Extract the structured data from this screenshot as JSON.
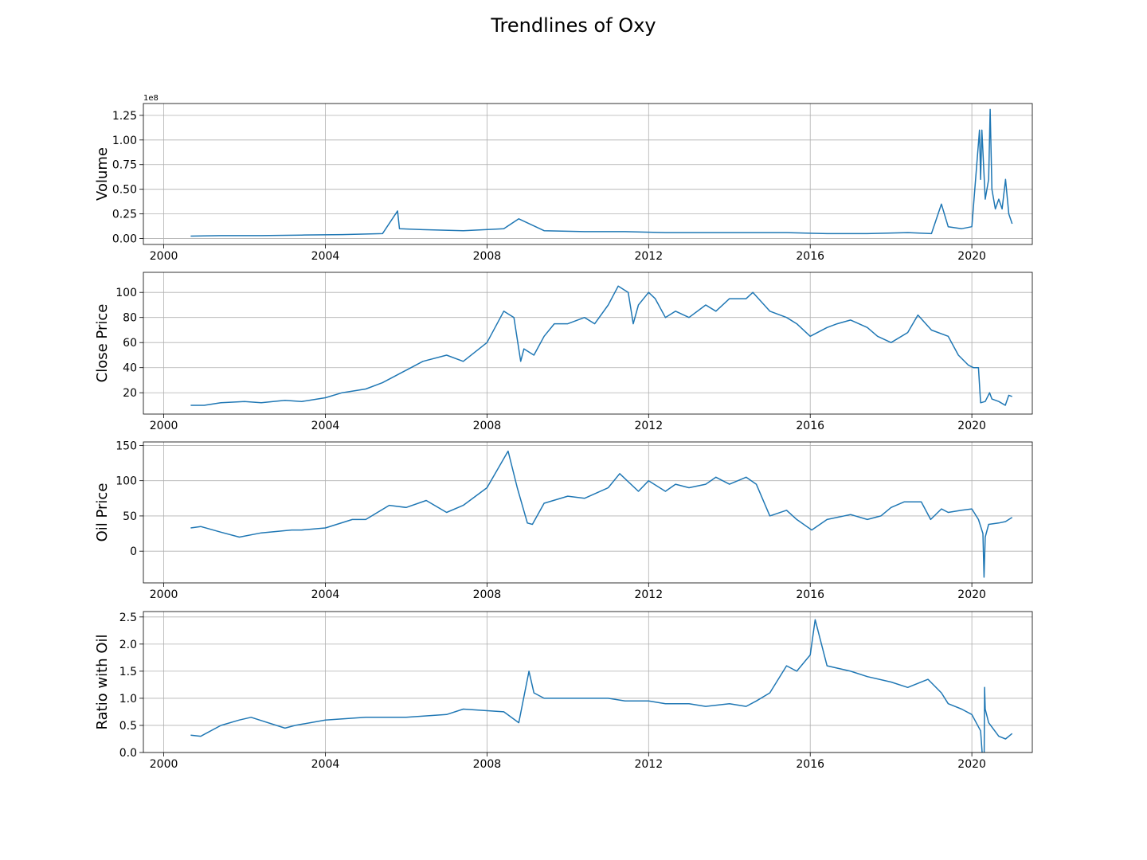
{
  "chart_data": {
    "type": "line",
    "title": "Trendlines of Oxy",
    "x_axis": {
      "label": "",
      "type": "date",
      "range": [
        "1999-07-01",
        "2021-07-01"
      ],
      "ticks": [
        "2000",
        "2004",
        "2008",
        "2012",
        "2016",
        "2020"
      ]
    },
    "line_color": "#1f77b4",
    "grid": true,
    "panels": [
      {
        "name": "volume",
        "ylabel": "Volume",
        "y_offset_label": "1e8",
        "ylim": [
          -0.06,
          1.37
        ],
        "y_ticks": [
          "0.00",
          "0.25",
          "0.50",
          "0.75",
          "1.00",
          "1.25"
        ],
        "y_tick_values": [
          0,
          0.25,
          0.5,
          0.75,
          1.0,
          1.25
        ],
        "series": [
          {
            "name": "",
            "x": [
              "2000-09-01",
              "2001-06-01",
              "2002-06-01",
              "2003-06-01",
              "2004-06-01",
              "2005-06-01",
              "2005-10-15",
              "2005-11-01",
              "2006-06-01",
              "2007-06-01",
              "2008-06-01",
              "2008-10-15",
              "2009-06-01",
              "2010-06-01",
              "2011-06-01",
              "2012-06-01",
              "2013-06-01",
              "2014-06-01",
              "2015-06-01",
              "2016-06-01",
              "2017-06-01",
              "2018-06-01",
              "2019-01-01",
              "2019-04-01",
              "2019-06-01",
              "2019-10-01",
              "2020-01-01",
              "2020-03-10",
              "2020-03-20",
              "2020-04-01",
              "2020-05-01",
              "2020-06-01",
              "2020-06-15",
              "2020-07-01",
              "2020-08-01",
              "2020-09-01",
              "2020-10-01",
              "2020-11-01",
              "2020-12-01",
              "2020-12-31"
            ],
            "values": [
              0.025,
              0.03,
              0.03,
              0.035,
              0.04,
              0.05,
              0.28,
              0.1,
              0.09,
              0.08,
              0.1,
              0.2,
              0.08,
              0.07,
              0.07,
              0.06,
              0.06,
              0.06,
              0.06,
              0.05,
              0.05,
              0.06,
              0.05,
              0.35,
              0.12,
              0.1,
              0.12,
              1.1,
              0.6,
              1.1,
              0.4,
              0.6,
              1.31,
              0.5,
              0.3,
              0.4,
              0.3,
              0.6,
              0.25,
              0.15
            ]
          }
        ]
      },
      {
        "name": "close-price",
        "ylabel": "Close Price",
        "ylim": [
          3,
          116
        ],
        "y_ticks": [
          "20",
          "40",
          "60",
          "80",
          "100"
        ],
        "y_tick_values": [
          20,
          40,
          60,
          80,
          100
        ],
        "series": [
          {
            "name": "",
            "x": [
              "2000-09-01",
              "2001-01-01",
              "2001-06-01",
              "2002-01-01",
              "2002-06-01",
              "2003-01-01",
              "2003-06-01",
              "2004-01-01",
              "2004-06-01",
              "2005-01-01",
              "2005-06-01",
              "2006-01-01",
              "2006-06-01",
              "2007-01-01",
              "2007-06-01",
              "2008-01-01",
              "2008-06-01",
              "2008-09-01",
              "2008-11-01",
              "2008-12-01",
              "2009-03-01",
              "2009-06-01",
              "2009-09-01",
              "2010-01-01",
              "2010-06-01",
              "2010-09-01",
              "2011-01-01",
              "2011-04-01",
              "2011-07-01",
              "2011-08-15",
              "2011-10-01",
              "2012-01-01",
              "2012-03-01",
              "2012-06-01",
              "2012-09-01",
              "2013-01-01",
              "2013-06-01",
              "2013-09-01",
              "2014-01-01",
              "2014-06-01",
              "2014-08-01",
              "2015-01-01",
              "2015-06-01",
              "2015-09-01",
              "2016-01-01",
              "2016-06-01",
              "2016-09-01",
              "2017-01-01",
              "2017-06-01",
              "2017-09-01",
              "2018-01-01",
              "2018-06-01",
              "2018-09-01",
              "2019-01-01",
              "2019-06-01",
              "2019-09-01",
              "2019-12-01",
              "2020-01-15",
              "2020-03-01",
              "2020-03-20",
              "2020-05-01",
              "2020-06-10",
              "2020-07-01",
              "2020-09-01",
              "2020-10-30",
              "2020-12-01",
              "2020-12-31"
            ],
            "values": [
              10,
              10,
              12,
              13,
              12,
              14,
              13,
              16,
              20,
              23,
              28,
              38,
              45,
              50,
              45,
              60,
              85,
              80,
              45,
              55,
              50,
              65,
              75,
              75,
              80,
              75,
              90,
              105,
              100,
              75,
              90,
              100,
              95,
              80,
              85,
              80,
              90,
              85,
              95,
              95,
              100,
              85,
              80,
              75,
              65,
              72,
              75,
              78,
              72,
              65,
              60,
              68,
              82,
              70,
              65,
              50,
              42,
              40,
              40,
              12,
              13,
              20,
              15,
              13,
              10,
              18,
              17
            ]
          }
        ]
      },
      {
        "name": "oil-price",
        "ylabel": "Oil Price",
        "ylim": [
          -45,
          155
        ],
        "y_ticks": [
          "0",
          "50",
          "100",
          "150"
        ],
        "y_tick_values": [
          0,
          50,
          100,
          150
        ],
        "series": [
          {
            "name": "",
            "x": [
              "2000-09-01",
              "2000-12-01",
              "2001-06-01",
              "2001-11-15",
              "2002-06-01",
              "2003-03-01",
              "2003-06-01",
              "2004-01-01",
              "2004-09-01",
              "2005-01-01",
              "2005-08-01",
              "2006-01-01",
              "2006-07-01",
              "2007-01-01",
              "2007-06-01",
              "2008-01-01",
              "2008-07-10",
              "2008-10-01",
              "2009-01-01",
              "2009-02-15",
              "2009-06-01",
              "2010-01-01",
              "2010-06-01",
              "2011-01-01",
              "2011-04-15",
              "2011-10-01",
              "2012-01-01",
              "2012-06-01",
              "2012-09-01",
              "2013-01-01",
              "2013-06-01",
              "2013-09-01",
              "2014-01-01",
              "2014-06-01",
              "2014-09-01",
              "2015-01-01",
              "2015-06-01",
              "2015-09-01",
              "2016-01-15",
              "2016-06-01",
              "2017-01-01",
              "2017-06-01",
              "2017-10-01",
              "2018-01-01",
              "2018-05-01",
              "2018-10-01",
              "2018-12-25",
              "2019-04-01",
              "2019-06-01",
              "2019-10-01",
              "2020-01-01",
              "2020-03-01",
              "2020-04-10",
              "2020-04-20",
              "2020-05-01",
              "2020-06-01",
              "2020-09-01",
              "2020-11-01",
              "2020-12-31"
            ],
            "values": [
              33,
              35,
              27,
              20,
              26,
              30,
              30,
              33,
              45,
              45,
              65,
              62,
              72,
              55,
              65,
              90,
              142,
              90,
              40,
              38,
              68,
              78,
              75,
              90,
              110,
              85,
              100,
              85,
              95,
              90,
              95,
              105,
              95,
              105,
              95,
              50,
              58,
              45,
              30,
              45,
              52,
              45,
              50,
              62,
              70,
              70,
              45,
              60,
              55,
              58,
              60,
              45,
              25,
              -37,
              20,
              38,
              40,
              42,
              48
            ]
          }
        ]
      },
      {
        "name": "ratio-with-oil",
        "ylabel": "Ratio with Oil",
        "ylim": [
          0.0,
          2.6
        ],
        "y_ticks": [
          "0.0",
          "0.5",
          "1.0",
          "1.5",
          "2.0",
          "2.5"
        ],
        "y_tick_values": [
          0.0,
          0.5,
          1.0,
          1.5,
          2.0,
          2.5
        ],
        "series": [
          {
            "name": "",
            "x": [
              "2000-09-01",
              "2000-12-01",
              "2001-06-01",
              "2001-11-15",
              "2002-03-01",
              "2003-01-01",
              "2003-04-01",
              "2004-01-01",
              "2005-01-01",
              "2006-01-01",
              "2007-01-01",
              "2007-06-01",
              "2008-06-01",
              "2008-10-15",
              "2009-01-15",
              "2009-03-01",
              "2009-06-01",
              "2010-01-01",
              "2011-01-01",
              "2011-06-01",
              "2012-01-01",
              "2012-06-01",
              "2013-01-01",
              "2013-06-01",
              "2014-01-01",
              "2014-06-01",
              "2014-09-01",
              "2015-01-01",
              "2015-06-01",
              "2015-09-01",
              "2016-01-01",
              "2016-02-15",
              "2016-06-01",
              "2017-01-01",
              "2017-06-01",
              "2018-01-01",
              "2018-06-01",
              "2018-12-01",
              "2019-04-01",
              "2019-06-01",
              "2019-10-01",
              "2020-01-01",
              "2020-03-20",
              "2020-04-20",
              "2020-04-25",
              "2020-05-01",
              "2020-06-01",
              "2020-09-01",
              "2020-11-01",
              "2020-12-31"
            ],
            "values": [
              0.32,
              0.3,
              0.5,
              0.6,
              0.65,
              0.45,
              0.5,
              0.6,
              0.65,
              0.65,
              0.7,
              0.8,
              0.75,
              0.55,
              1.5,
              1.1,
              1.0,
              1.0,
              1.0,
              0.95,
              0.95,
              0.9,
              0.9,
              0.85,
              0.9,
              0.85,
              0.95,
              1.1,
              1.6,
              1.5,
              1.8,
              2.45,
              1.6,
              1.5,
              1.4,
              1.3,
              1.2,
              1.35,
              1.1,
              0.9,
              0.8,
              0.7,
              0.4,
              -0.5,
              1.2,
              0.8,
              0.55,
              0.3,
              0.25,
              0.35
            ]
          }
        ]
      }
    ]
  }
}
